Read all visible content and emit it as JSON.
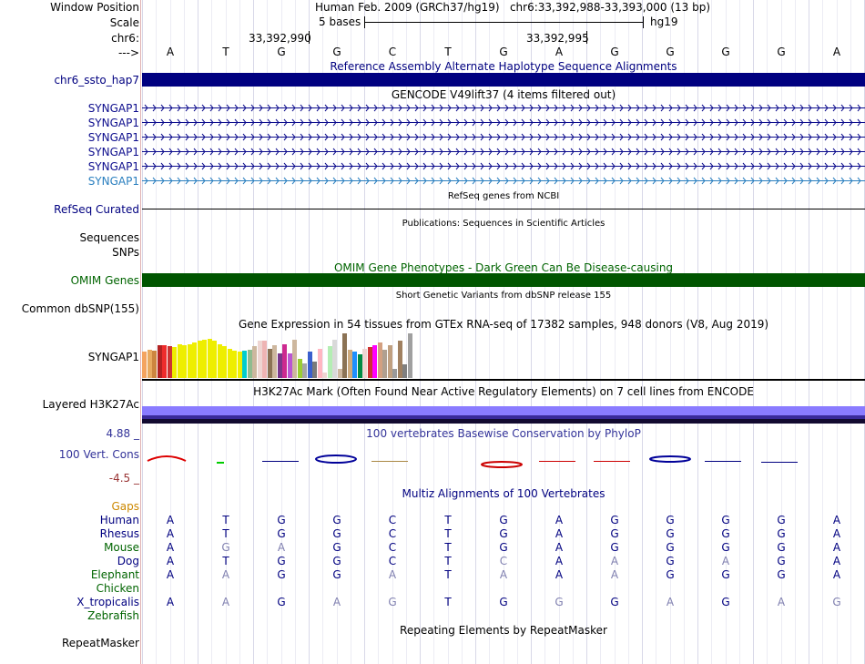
{
  "header": {
    "window_label": "Window Position",
    "window_value": "Human Feb. 2009 (GRCh37/hg19)   chr6:33,392,988-33,393,000 (13 bp)",
    "scale_label": "Scale",
    "scale_value": "5 bases",
    "scale_db": "hg19",
    "chr_label": "chr6:",
    "tick1": "33,392,990",
    "tick2": "33,392,995",
    "strand_label": "--->"
  },
  "bases": [
    "A",
    "T",
    "G",
    "G",
    "C",
    "T",
    "G",
    "A",
    "G",
    "G",
    "G",
    "G",
    "A"
  ],
  "tracks": {
    "alt_hap": {
      "title": "Reference Assembly Alternate Haplotype Sequence Alignments",
      "label": "chr6_ssto_hap7"
    },
    "gencode": {
      "title": "GENCODE V49lift37 (4 items filtered out)",
      "items": [
        "SYNGAP1",
        "SYNGAP1",
        "SYNGAP1",
        "SYNGAP1",
        "SYNGAP1",
        "SYNGAP1"
      ]
    },
    "refseq": {
      "title": "RefSeq genes from NCBI",
      "label": "RefSeq Curated"
    },
    "pubs": {
      "title": "Publications: Sequences in Scientific Articles",
      "label1": "Sequences",
      "label2": "SNPs"
    },
    "omim": {
      "title": "OMIM Gene Phenotypes - Dark Green Can Be Disease-causing",
      "label": "OMIM Genes"
    },
    "dbsnp": {
      "title": "Short Genetic Variants from dbSNP release 155",
      "label": "Common dbSNP(155)"
    },
    "gtex": {
      "title": "Gene Expression in 54 tissues from GTEx RNA-seq of 17382 samples, 948 donors (V8, Aug 2019)",
      "label": "SYNGAP1"
    },
    "h3k27ac": {
      "title": "H3K27Ac Mark (Often Found Near Active Regulatory Elements) on 7 cell lines from ENCODE",
      "label": "Layered H3K27Ac"
    },
    "phylop": {
      "title": "100 vertebrates Basewise Conservation by PhyloP",
      "label": "100 Vert. Cons",
      "max": "4.88 _",
      "min": "-4.5 _"
    },
    "multiz": {
      "title": "Multiz Alignments of 100 Vertebrates",
      "gaps_label": "Gaps"
    },
    "rmsk": {
      "title": "Repeating Elements by RepeatMasker",
      "label": "RepeatMasker"
    }
  },
  "species": [
    {
      "name": "Human",
      "bases": [
        "A",
        "T",
        "G",
        "G",
        "C",
        "T",
        "G",
        "A",
        "G",
        "G",
        "G",
        "G",
        "A"
      ],
      "faint": [
        0,
        0,
        0,
        0,
        0,
        0,
        0,
        0,
        0,
        0,
        0,
        0,
        0
      ]
    },
    {
      "name": "Rhesus",
      "bases": [
        "A",
        "T",
        "G",
        "G",
        "C",
        "T",
        "G",
        "A",
        "G",
        "G",
        "G",
        "G",
        "A"
      ],
      "faint": [
        0,
        0,
        0,
        0,
        0,
        0,
        0,
        0,
        0,
        0,
        0,
        0,
        0
      ]
    },
    {
      "name": "Mouse",
      "bases": [
        "A",
        "G",
        "A",
        "G",
        "C",
        "T",
        "G",
        "A",
        "G",
        "G",
        "G",
        "G",
        "A"
      ],
      "faint": [
        0,
        1,
        1,
        0,
        0,
        0,
        0,
        0,
        0,
        0,
        0,
        0,
        0
      ]
    },
    {
      "name": "Dog",
      "bases": [
        "A",
        "T",
        "G",
        "G",
        "C",
        "T",
        "C",
        "A",
        "A",
        "G",
        "A",
        "G",
        "A"
      ],
      "faint": [
        0,
        0,
        0,
        0,
        0,
        0,
        1,
        0,
        1,
        0,
        1,
        0,
        0
      ]
    },
    {
      "name": "Elephant",
      "bases": [
        "A",
        "A",
        "G",
        "G",
        "A",
        "T",
        "A",
        "A",
        "A",
        "G",
        "G",
        "G",
        "A"
      ],
      "faint": [
        0,
        1,
        0,
        0,
        1,
        0,
        1,
        0,
        1,
        0,
        0,
        0,
        0
      ]
    },
    {
      "name": "Chicken",
      "bases": [
        "",
        "",
        "",
        "",
        "",
        "",
        "",
        "",
        "",
        "",
        "",
        "",
        ""
      ],
      "faint": [
        0,
        0,
        0,
        0,
        0,
        0,
        0,
        0,
        0,
        0,
        0,
        0,
        0
      ]
    },
    {
      "name": "X_tropicalis",
      "bases": [
        "A",
        "A",
        "G",
        "A",
        "G",
        "T",
        "G",
        "G",
        "G",
        "A",
        "G",
        "A",
        "G"
      ],
      "faint": [
        0,
        1,
        0,
        1,
        1,
        0,
        0,
        1,
        0,
        1,
        0,
        1,
        1
      ]
    },
    {
      "name": "Zebrafish",
      "bases": [
        "",
        "",
        "",
        "",
        "",
        "",
        "",
        "",
        "",
        "",
        "",
        "",
        ""
      ],
      "faint": [
        0,
        0,
        0,
        0,
        0,
        0,
        0,
        0,
        0,
        0,
        0,
        0,
        0
      ]
    }
  ],
  "gtex_values": [
    0.55,
    0.6,
    0.58,
    0.7,
    0.7,
    0.68,
    0.65,
    0.72,
    0.7,
    0.72,
    0.75,
    0.78,
    0.8,
    0.82,
    0.78,
    0.72,
    0.68,
    0.62,
    0.58,
    0.55,
    0.58,
    0.6,
    0.68,
    0.78,
    0.78,
    0.62,
    0.7,
    0.52,
    0.72,
    0.52,
    0.8,
    0.4,
    0.3,
    0.55,
    0.35,
    0.62,
    0.12,
    0.68,
    0.8,
    0.2,
    0.95,
    0.6,
    0.55,
    0.5,
    0.62,
    0.65,
    0.7,
    0.75,
    0.6,
    0.7,
    0.2,
    0.78,
    0.28,
    0.95
  ],
  "gtex_colors": [
    "#f4a460",
    "#e8aa60",
    "#cd853f",
    "#b22222",
    "#ee2c2c",
    "#cc3333",
    "#eeee00",
    "#eeee00",
    "#eeee00",
    "#eeee00",
    "#eeee00",
    "#eeee00",
    "#eeee00",
    "#eeee00",
    "#eeee00",
    "#eeee00",
    "#eeee00",
    "#eeee00",
    "#eeee00",
    "#eeee00",
    "#00cdcd",
    "#8fbc8f",
    "#cdb79e",
    "#eed5d2",
    "#eeb4b4",
    "#8b7355",
    "#cdb79e",
    "#7a378b",
    "#cd2990",
    "#ba55d3",
    "#cdb79e",
    "#9acd32",
    "#a6a6a6",
    "#3a5fcd",
    "#7a7a7a",
    "#ffb6c1",
    "#eed5d2",
    "#b4eeb4",
    "#d9d9d9",
    "#cdb79e",
    "#8b7355",
    "#cdaa7d",
    "#1e90ff",
    "#008b45",
    "#eed5d2",
    "#cd3333",
    "#ff00ff",
    "#d3a080",
    "#b0a090",
    "#c0a080",
    "#9a9a9a",
    "#a08060",
    "#808080",
    "#a0a0a0"
  ],
  "colors": {
    "navy": "#000080",
    "dark_green": "#005500",
    "gene_blue": "#0d0d8d",
    "gene_light": "#2a7fbf",
    "layer_purple": "#8a7bff",
    "omim_green": "#006400",
    "gaps_orange": "#cc8800"
  }
}
